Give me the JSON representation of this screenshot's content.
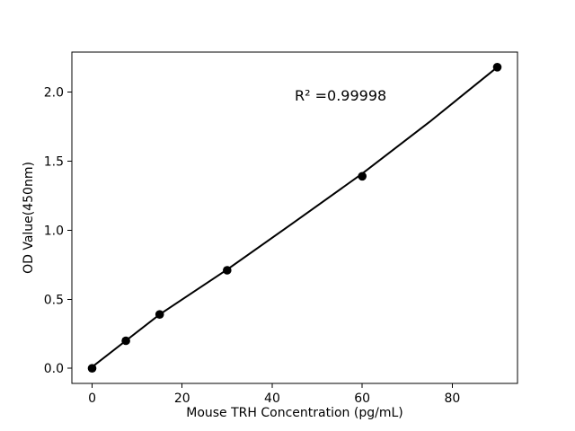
{
  "figure": {
    "background": "#ffffff",
    "foreground": "#000000"
  },
  "chart_data": {
    "type": "scatter",
    "title": "",
    "xlabel": "Mouse TRH Concentration (pg/mL)",
    "ylabel": "OD Value(450nm)",
    "annotation": "R² =0.99998",
    "r_squared": 0.99998,
    "x": [
      0,
      7.5,
      15,
      30,
      60,
      90
    ],
    "y": [
      0.0,
      0.2,
      0.39,
      0.71,
      1.39,
      2.18
    ],
    "trendline_points": [
      [
        0,
        0.01
      ],
      [
        15,
        0.39
      ],
      [
        30,
        0.715
      ],
      [
        45,
        1.06
      ],
      [
        60,
        1.41
      ],
      [
        75,
        1.785
      ],
      [
        90,
        2.18
      ]
    ],
    "xticks": [
      {
        "value": 0,
        "label": "0"
      },
      {
        "value": 20,
        "label": "20"
      },
      {
        "value": 40,
        "label": "40"
      },
      {
        "value": 60,
        "label": "60"
      },
      {
        "value": 80,
        "label": "80"
      }
    ],
    "yticks": [
      {
        "value": 0.0,
        "label": "0.0"
      },
      {
        "value": 0.5,
        "label": "0.5"
      },
      {
        "value": 1.0,
        "label": "1.0"
      },
      {
        "value": 1.5,
        "label": "1.5"
      },
      {
        "value": 2.0,
        "label": "2.0"
      }
    ],
    "xlim": [
      -4.5,
      94.5
    ],
    "ylim": [
      -0.109,
      2.289
    ],
    "grid": false,
    "legend": null,
    "marker_color": "#000000",
    "line_color": "#000000",
    "background": "#ffffff"
  }
}
